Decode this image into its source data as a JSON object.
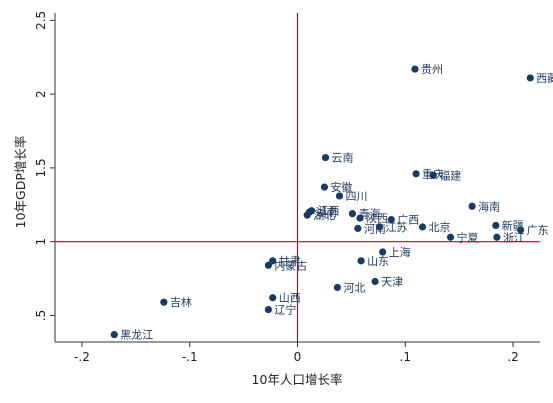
{
  "chart_data": {
    "type": "scatter",
    "title": "",
    "xlabel": "10年人口增长率",
    "ylabel": "10年GDP增长率",
    "xlim": [
      -0.225,
      0.225
    ],
    "ylim": [
      0.32,
      2.55
    ],
    "xticks": [
      {
        "value": -0.2,
        "label": "-.2"
      },
      {
        "value": -0.1,
        "label": "-.1"
      },
      {
        "value": 0,
        "label": "0"
      },
      {
        "value": 0.1,
        "label": ".1"
      },
      {
        "value": 0.2,
        "label": ".2"
      }
    ],
    "yticks": [
      {
        "value": 0.5,
        "label": ".5"
      },
      {
        "value": 1,
        "label": "1"
      },
      {
        "value": 1.5,
        "label": "1.5"
      },
      {
        "value": 2,
        "label": "2"
      },
      {
        "value": 2.5,
        "label": "2.5"
      }
    ],
    "reference_lines": {
      "x": 0,
      "y": 1,
      "color": "#c00020"
    },
    "marker_color": "#1a3a66",
    "grid": false,
    "points": [
      {
        "name": "西藏",
        "x": 0.216,
        "y": 2.11
      },
      {
        "name": "贵州",
        "x": 0.109,
        "y": 2.17
      },
      {
        "name": "云南",
        "x": 0.026,
        "y": 1.57
      },
      {
        "name": "重庆",
        "x": 0.11,
        "y": 1.46
      },
      {
        "name": "福建",
        "x": 0.126,
        "y": 1.45
      },
      {
        "name": "安徽",
        "x": 0.025,
        "y": 1.37
      },
      {
        "name": "四川",
        "x": 0.039,
        "y": 1.31
      },
      {
        "name": "海南",
        "x": 0.162,
        "y": 1.24
      },
      {
        "name": "江西",
        "x": 0.013,
        "y": 1.21
      },
      {
        "name": "湖南",
        "x": 0.011,
        "y": 1.2
      },
      {
        "name": "湖北",
        "x": 0.009,
        "y": 1.18
      },
      {
        "name": "青海",
        "x": 0.051,
        "y": 1.19
      },
      {
        "name": "陕西",
        "x": 0.058,
        "y": 1.16
      },
      {
        "name": "广西",
        "x": 0.087,
        "y": 1.15
      },
      {
        "name": "河南",
        "x": 0.056,
        "y": 1.09
      },
      {
        "name": "江苏",
        "x": 0.076,
        "y": 1.1
      },
      {
        "name": "北京",
        "x": 0.116,
        "y": 1.1
      },
      {
        "name": "新疆",
        "x": 0.184,
        "y": 1.11
      },
      {
        "name": "广东",
        "x": 0.207,
        "y": 1.08
      },
      {
        "name": "宁夏",
        "x": 0.142,
        "y": 1.03
      },
      {
        "name": "浙江",
        "x": 0.185,
        "y": 1.03
      },
      {
        "name": "上海",
        "x": 0.079,
        "y": 0.93
      },
      {
        "name": "山东",
        "x": 0.059,
        "y": 0.87
      },
      {
        "name": "甘肃",
        "x": -0.023,
        "y": 0.87
      },
      {
        "name": "内蒙古",
        "x": -0.027,
        "y": 0.84
      },
      {
        "name": "天津",
        "x": 0.072,
        "y": 0.73
      },
      {
        "name": "河北",
        "x": 0.037,
        "y": 0.69
      },
      {
        "name": "山西",
        "x": -0.023,
        "y": 0.62
      },
      {
        "name": "吉林",
        "x": -0.124,
        "y": 0.59
      },
      {
        "name": "辽宁",
        "x": -0.027,
        "y": 0.54
      },
      {
        "name": "黑龙江",
        "x": -0.17,
        "y": 0.37
      }
    ]
  }
}
